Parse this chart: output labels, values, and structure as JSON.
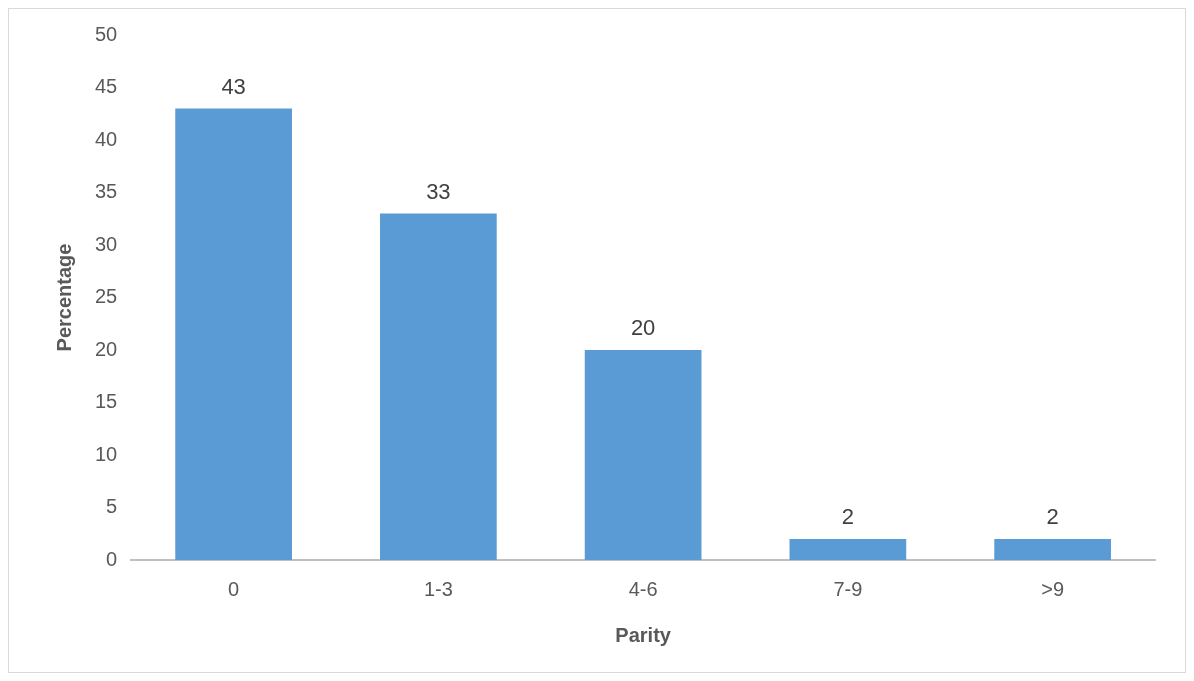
{
  "chart_data": {
    "type": "bar",
    "xlabel": "Parity",
    "ylabel": "Percentage",
    "categories": [
      "0",
      "1-3",
      "4-6",
      "7-9",
      ">9"
    ],
    "values": [
      43,
      33,
      20,
      2,
      2
    ],
    "color": "#5b9bd5",
    "ylim": [
      0,
      50
    ],
    "yticks": [
      0,
      5,
      10,
      15,
      20,
      25,
      30,
      35,
      40,
      45,
      50
    ],
    "grid": false,
    "legend": false,
    "data_labels": true
  }
}
